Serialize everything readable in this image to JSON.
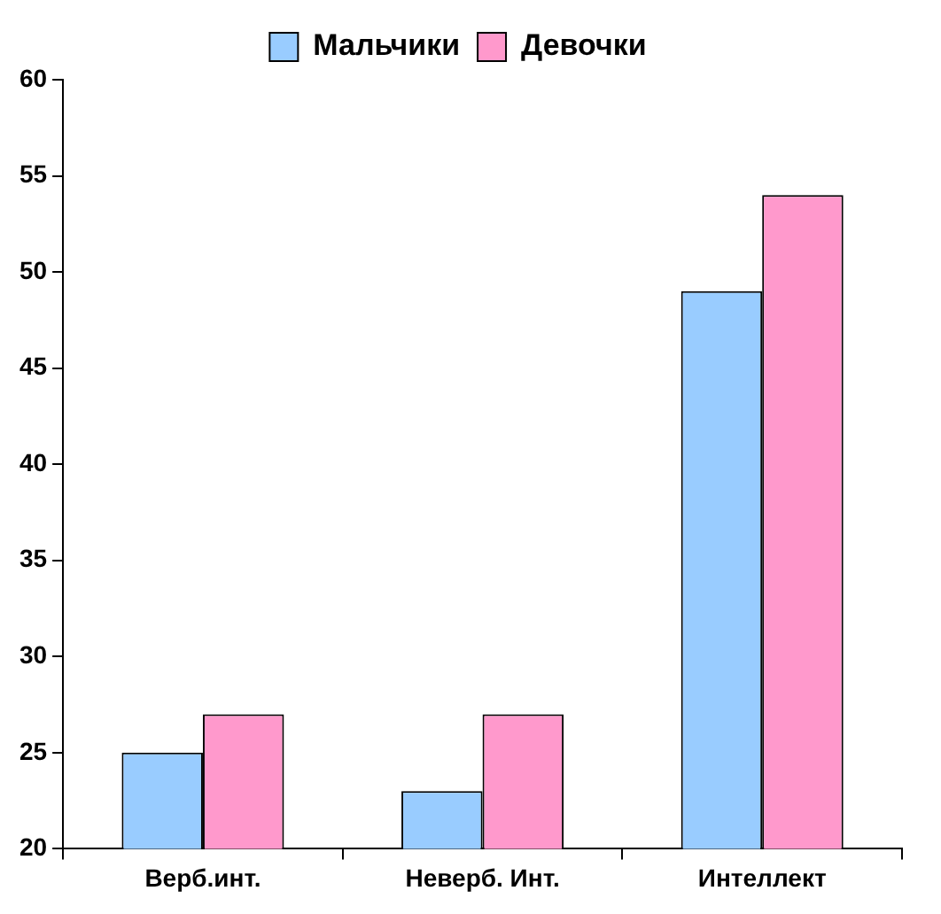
{
  "chart_data": {
    "type": "bar",
    "categories": [
      "Верб.инт.",
      "Неверб. Инт.",
      "Интеллект"
    ],
    "series": [
      {
        "name": "Мальчики",
        "color": "#99ccff",
        "values": [
          25,
          23,
          49
        ]
      },
      {
        "name": "Девочки",
        "color": "#ff99cc",
        "values": [
          27,
          27,
          54
        ]
      }
    ],
    "ylim": [
      20,
      60
    ],
    "yticks": [
      20,
      25,
      30,
      35,
      40,
      45,
      50,
      55,
      60
    ],
    "legend": "top"
  }
}
